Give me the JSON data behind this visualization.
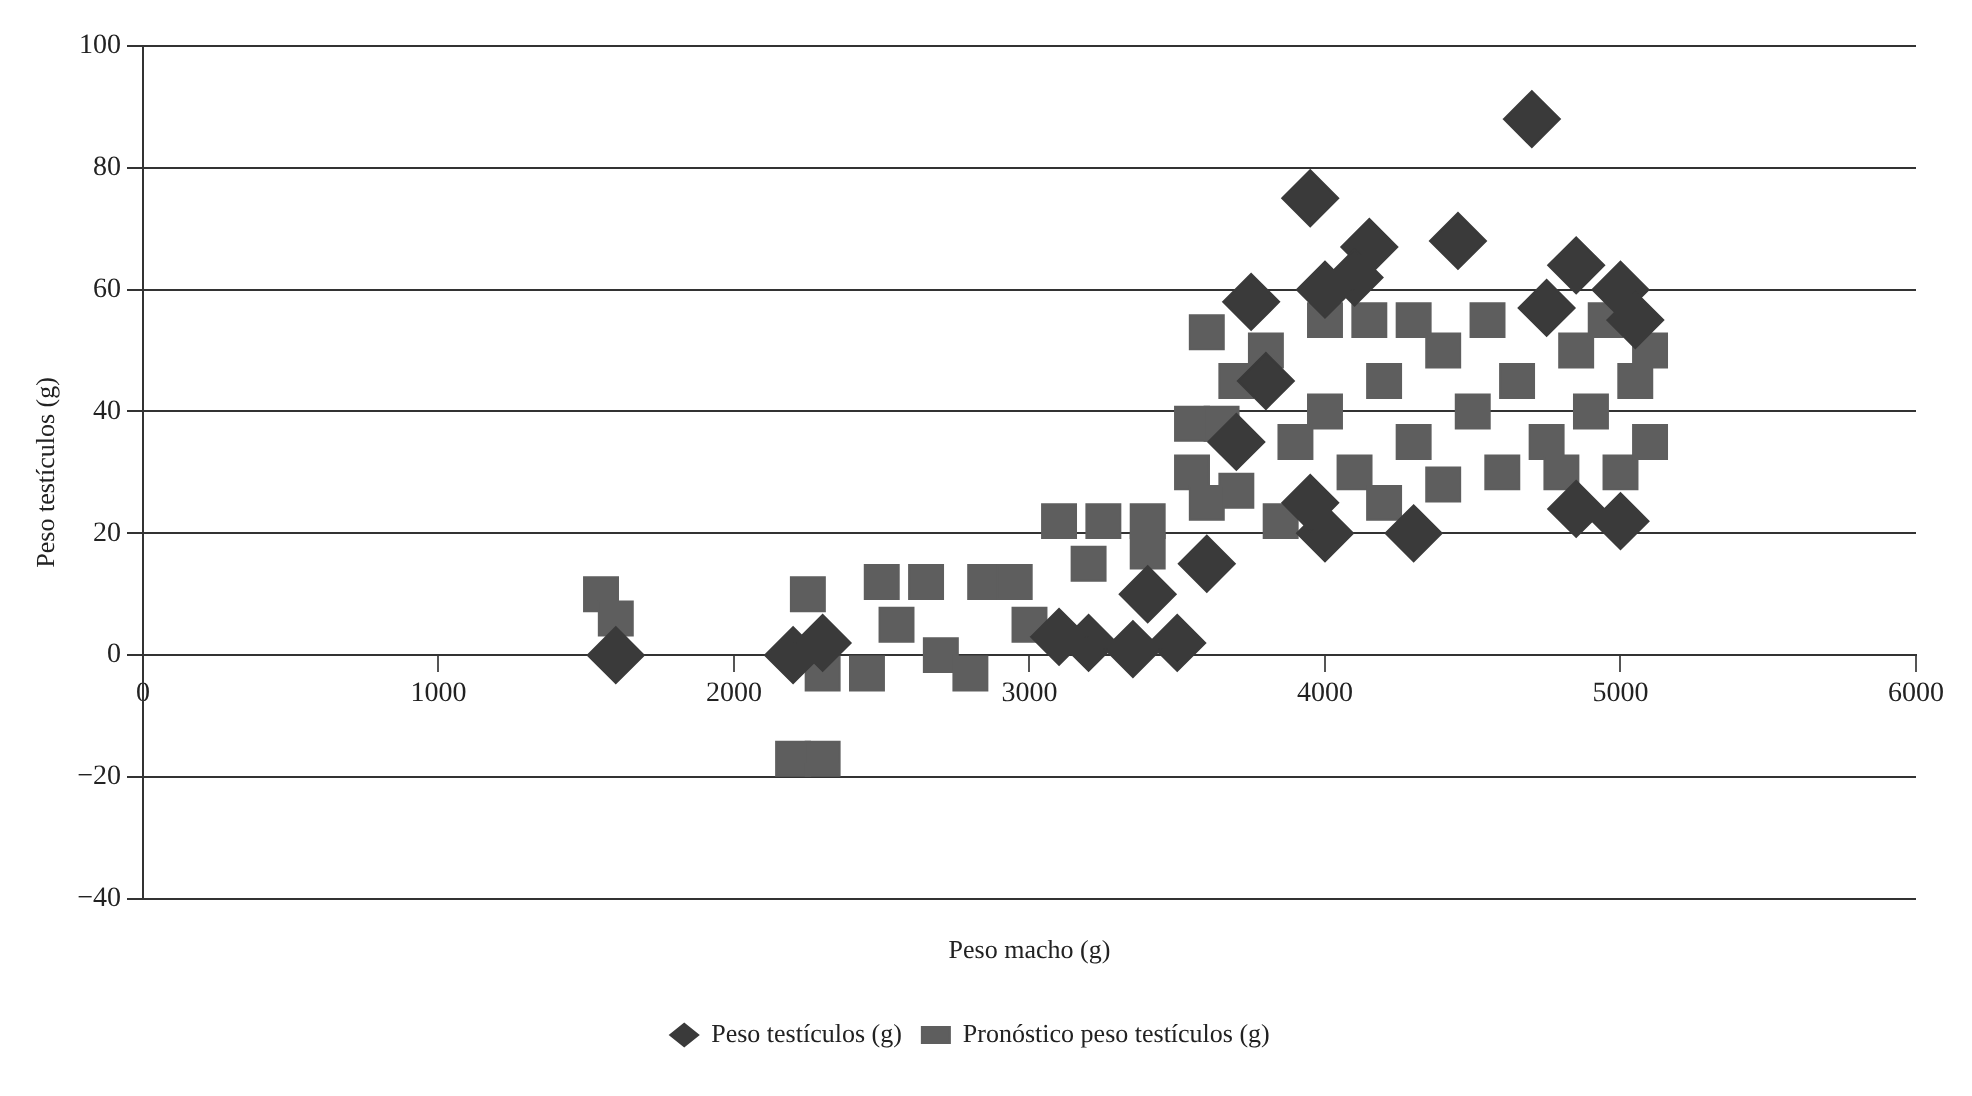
{
  "chart_data": {
    "type": "scatter",
    "xlabel": "Peso macho (g)",
    "ylabel": "Peso testículos (g)",
    "xlim": [
      0,
      6000
    ],
    "xticks": [
      0,
      1000,
      2000,
      3000,
      4000,
      5000,
      6000
    ],
    "ylim": [
      -40,
      100
    ],
    "yticks": [
      {
        "value": -40,
        "label": "−40"
      },
      {
        "value": -20,
        "label": "−20"
      },
      0,
      20,
      40,
      60,
      80,
      100
    ],
    "grid": "y",
    "legend": "bottom",
    "series": [
      {
        "name": "Peso testículos (g)",
        "color": "#3a3a3a",
        "marker": "diamond",
        "x": [
          1600,
          4700,
          3950,
          4150,
          4450,
          4850,
          4100,
          4000,
          3750,
          5000,
          4750,
          5050,
          3800,
          3700,
          4000,
          4300,
          4850,
          5000,
          3950,
          3400,
          3200,
          3500,
          3100,
          3350,
          2200,
          2300,
          3600
        ],
        "values": [
          0,
          88,
          75,
          67,
          68,
          64,
          62,
          60,
          58,
          60,
          57,
          55,
          45,
          35,
          20,
          20,
          24,
          22,
          25,
          10,
          2,
          2,
          3,
          1,
          0,
          2,
          15
        ]
      },
      {
        "name": "Pronóstico peso testículos (g)",
        "color": "#5e5e5e",
        "marker": "square",
        "x": [
          1550,
          1600,
          2200,
          2300,
          2250,
          2300,
          2450,
          2500,
          2550,
          2650,
          2700,
          2850,
          2800,
          2950,
          3000,
          3100,
          3250,
          3400,
          3200,
          3400,
          3550,
          3550,
          3650,
          3600,
          3800,
          3700,
          3850,
          3900,
          4000,
          4000,
          4100,
          4150,
          4200,
          4300,
          4300,
          4400,
          4400,
          4500,
          4550,
          4600,
          4650,
          4750,
          4800,
          4850,
          4900,
          4950,
          5000,
          5050,
          5100,
          5100,
          4200,
          3600,
          3700
        ],
        "values": [
          10,
          6,
          -17,
          -17,
          10,
          -3,
          -3,
          12,
          5,
          12,
          0,
          12,
          -3,
          12,
          5,
          22,
          22,
          22,
          15,
          17,
          38,
          30,
          38,
          53,
          50,
          27,
          22,
          35,
          55,
          40,
          30,
          55,
          45,
          35,
          55,
          50,
          28,
          40,
          55,
          30,
          45,
          35,
          30,
          50,
          40,
          55,
          30,
          45,
          50,
          35,
          25,
          25,
          45
        ]
      }
    ]
  }
}
